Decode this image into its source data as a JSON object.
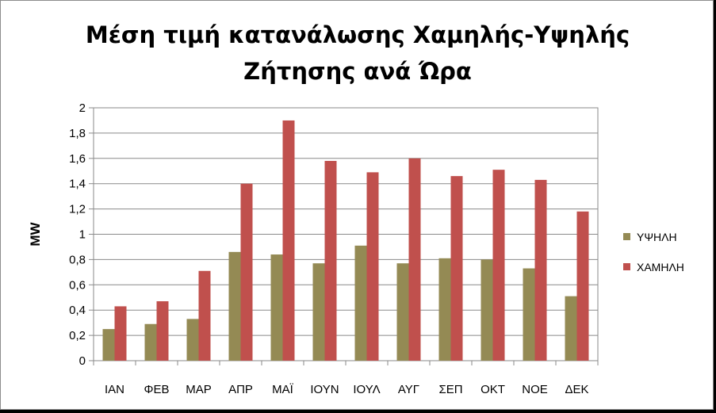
{
  "chart_data": {
    "type": "bar",
    "title": "Μέση τιμή κατανάλωσης Χαμηλής-Υψηλής Ζήτησης ανά Ώρα",
    "xlabel": "",
    "ylabel": "MW",
    "ylim": [
      0,
      2
    ],
    "yticks": [
      "0",
      "0,2",
      "0,4",
      "0,6",
      "0,8",
      "1",
      "1,2",
      "1,4",
      "1,6",
      "1,8",
      "2"
    ],
    "categories": [
      "ΙΑΝ",
      "ΦΕΒ",
      "ΜΑΡ",
      "ΑΠΡ",
      "ΜΑΪ",
      "ΙΟΥΝ",
      "ΙΟΥΛ",
      "ΑΥΓ",
      "ΣΕΠ",
      "ΟΚΤ",
      "ΝΟΕ",
      "ΔΕΚ"
    ],
    "series": [
      {
        "name": "ΥΨΗΛΗ",
        "color": "#948A54",
        "values": [
          0.25,
          0.29,
          0.33,
          0.86,
          0.84,
          0.77,
          0.91,
          0.77,
          0.81,
          0.8,
          0.73,
          0.51
        ]
      },
      {
        "name": "ΧΑΜΗΛΗ",
        "color": "#C0504D",
        "values": [
          0.43,
          0.47,
          0.71,
          1.4,
          1.9,
          1.58,
          1.49,
          1.6,
          1.46,
          1.51,
          1.43,
          1.18
        ]
      }
    ],
    "grid": true,
    "legend": "right"
  }
}
